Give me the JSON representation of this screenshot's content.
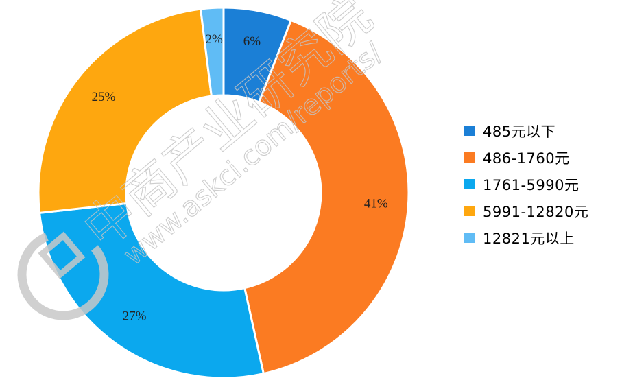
{
  "chart_data": {
    "type": "pie",
    "donut": true,
    "title": "",
    "categories": [
      "485元以下",
      "486-1760元",
      "1761-5990元",
      "5991-12820元",
      "12821元以上"
    ],
    "values": [
      6,
      41,
      27,
      25,
      2
    ],
    "labels": [
      "6%",
      "41%",
      "27%",
      "25%",
      "2%"
    ],
    "colors": [
      "#1b7fd6",
      "#fb7b22",
      "#0ba8ee",
      "#fea70f",
      "#60bcf5"
    ],
    "legend_position": "right"
  },
  "watermark": {
    "name": "中商产业研究院",
    "url": "www.askci.com/reports/"
  }
}
